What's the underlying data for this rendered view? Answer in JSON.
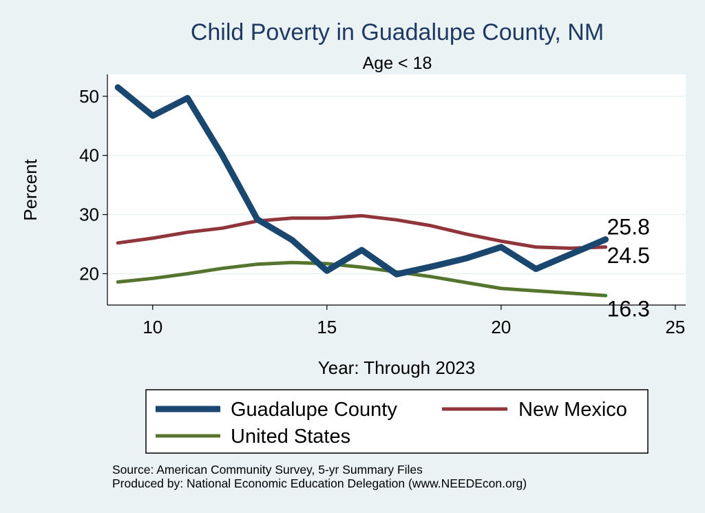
{
  "chart_data": {
    "type": "line",
    "title": "Child Poverty in Guadalupe County, NM",
    "subtitle": "Age < 18",
    "xlabel": "Year: Through 2023",
    "ylabel": "Percent",
    "xlim": [
      8.7,
      25.3
    ],
    "ylim": [
      14.7,
      53.7
    ],
    "xticks": [
      10,
      15,
      20,
      25
    ],
    "yticks": [
      20,
      30,
      40,
      50
    ],
    "grid": true,
    "legend_position": "bottom",
    "series": [
      {
        "name": "Guadalupe County",
        "color": "#1a476f",
        "x": [
          9,
          10,
          11,
          12,
          13,
          14,
          15,
          16,
          17,
          18,
          19,
          20,
          21,
          22,
          23
        ],
        "values": [
          51.5,
          46.7,
          49.7,
          40.0,
          29.2,
          25.7,
          20.5,
          24.0,
          19.9,
          21.2,
          22.6,
          24.5,
          20.8,
          23.3,
          25.8
        ],
        "end_label": "25.8"
      },
      {
        "name": "New Mexico",
        "color": "#90353b",
        "x": [
          9,
          10,
          11,
          12,
          13,
          14,
          15,
          16,
          17,
          18,
          19,
          20,
          21,
          22,
          23
        ],
        "values": [
          25.2,
          26.0,
          27.0,
          27.7,
          28.9,
          29.4,
          29.4,
          29.8,
          29.1,
          28.1,
          26.7,
          25.5,
          24.5,
          24.3,
          24.5
        ],
        "end_label": "24.5"
      },
      {
        "name": "United States",
        "color": "#55752f",
        "x": [
          9,
          10,
          11,
          12,
          13,
          14,
          15,
          16,
          17,
          18,
          19,
          20,
          21,
          22,
          23
        ],
        "values": [
          18.6,
          19.2,
          20.0,
          20.9,
          21.6,
          21.9,
          21.7,
          21.1,
          20.3,
          19.5,
          18.5,
          17.5,
          17.1,
          16.7,
          16.3
        ],
        "end_label": "16.3"
      }
    ]
  },
  "notes": {
    "source": "Source: American Community Survey, 5-yr Summary Files",
    "produced_by": "Produced by: National Economic Education Delegation (www.NEEDEcon.org)"
  }
}
